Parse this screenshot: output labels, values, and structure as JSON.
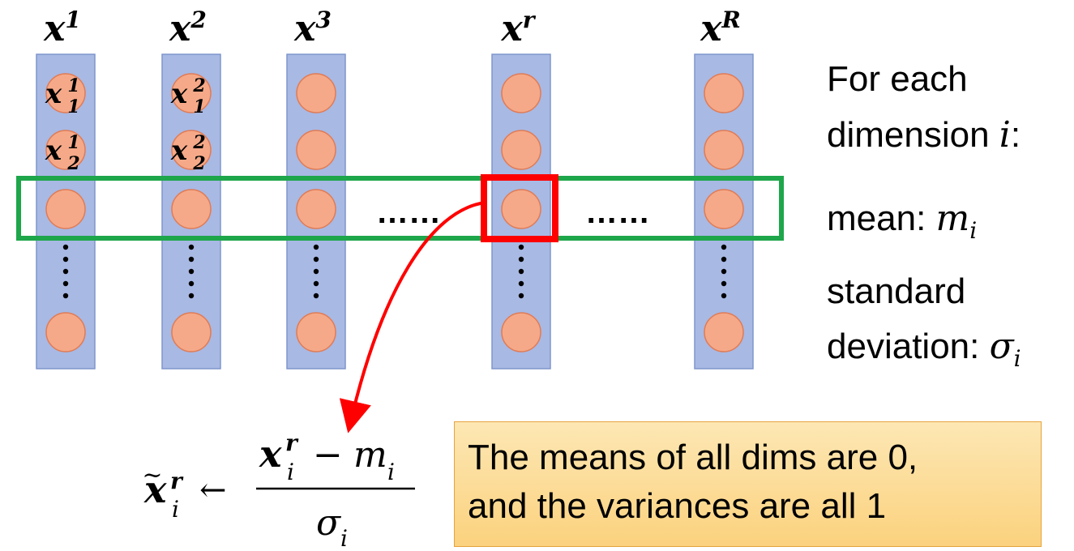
{
  "columns": [
    {
      "base": "x",
      "sup": "1",
      "cell_labels": [
        {
          "base": "x",
          "sub": "1",
          "sup": "1"
        },
        {
          "base": "x",
          "sub": "2",
          "sup": "1"
        }
      ]
    },
    {
      "base": "x",
      "sup": "2",
      "cell_labels": [
        {
          "base": "x",
          "sub": "1",
          "sup": "2"
        },
        {
          "base": "x",
          "sub": "2",
          "sup": "2"
        }
      ]
    },
    {
      "base": "x",
      "sup": "3",
      "cell_labels": []
    },
    {
      "base": "x",
      "sup": "r",
      "cell_labels": []
    },
    {
      "base": "x",
      "sup": "R",
      "cell_labels": []
    }
  ],
  "ellipsis_left": "……",
  "ellipsis_right": "……",
  "side_text": {
    "line1": "For each",
    "line2_text": "dimension ",
    "line2_var": "i",
    "line2_colon": ":",
    "mean_label": "mean: ",
    "mean_var": "m",
    "mean_sub": "i",
    "std_line1": "standard",
    "std_label": "deviation: ",
    "std_var": "σ",
    "std_sub": "i"
  },
  "formula": {
    "lhs_base": "x",
    "lhs_tilde": "~",
    "lhs_sup": "r",
    "lhs_sub": "i",
    "arrow": "←",
    "num_base": "x",
    "num_sup": "r",
    "num_sub": "i",
    "minus": "−",
    "num_m": "m",
    "num_m_sub": "i",
    "den_var": "σ",
    "den_sub": "i"
  },
  "note": {
    "line1": "The means of all dims are 0,",
    "line2": "and the variances are all 1"
  },
  "colors": {
    "column_fill": "#a8b9e4",
    "column_stroke": "#7f96cc",
    "node_fill": "#f5a988",
    "node_stroke": "#e07b55",
    "row_highlight": "#1ea64a",
    "selected_cell": "#ff0000",
    "arrow": "#ff0000"
  }
}
